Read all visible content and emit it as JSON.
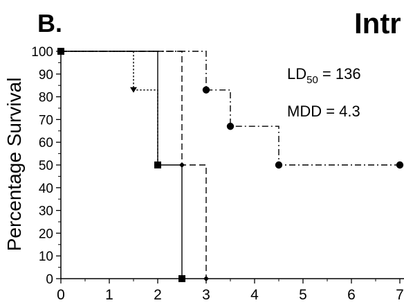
{
  "panel_label": "B.",
  "chart_data": {
    "type": "line",
    "title": "Intr",
    "xlabel": "",
    "ylabel": "Percentage Survival",
    "xlim": [
      0,
      7
    ],
    "ylim": [
      0,
      100
    ],
    "x_ticks": [
      "0",
      "1",
      "2",
      "3",
      "4",
      "5",
      "6",
      "7"
    ],
    "y_ticks": [
      "0",
      "10",
      "20",
      "30",
      "40",
      "50",
      "60",
      "70",
      "80",
      "90",
      "100"
    ],
    "annotations": {
      "ld50_prefix": "LD",
      "ld50_sub": "50",
      "ld50_value": " = 136",
      "mdd": "MDD = 4.3"
    },
    "series": [
      {
        "marker": "triangle-down",
        "dash": "dotted",
        "x": [
          0,
          1.5,
          1.5,
          2,
          2
        ],
        "y": [
          100,
          100,
          83,
          83,
          50
        ],
        "marker_points": [
          [
            1.5,
            83
          ]
        ]
      },
      {
        "marker": "square",
        "dash": "solid",
        "x": [
          0,
          2,
          2,
          2.5,
          2.5
        ],
        "y": [
          100,
          100,
          50,
          50,
          0
        ],
        "marker_points": [
          [
            0,
            100
          ],
          [
            2,
            50
          ],
          [
            2.5,
            0
          ]
        ]
      },
      {
        "marker": "diamond",
        "dash": "dashed",
        "x": [
          0,
          2.5,
          2.5,
          3,
          3
        ],
        "y": [
          100,
          100,
          50,
          50,
          0
        ],
        "marker_points": [
          [
            2.5,
            50
          ],
          [
            3,
            0
          ]
        ]
      },
      {
        "marker": "circle",
        "dash": "dash-dot",
        "x": [
          0,
          3,
          3,
          3.5,
          3.5,
          4.5,
          4.5,
          7
        ],
        "y": [
          100,
          100,
          83,
          83,
          67,
          67,
          50,
          50
        ],
        "marker_points": [
          [
            3,
            83
          ],
          [
            3.5,
            67
          ],
          [
            4.5,
            50
          ],
          [
            7,
            50
          ]
        ]
      }
    ]
  }
}
